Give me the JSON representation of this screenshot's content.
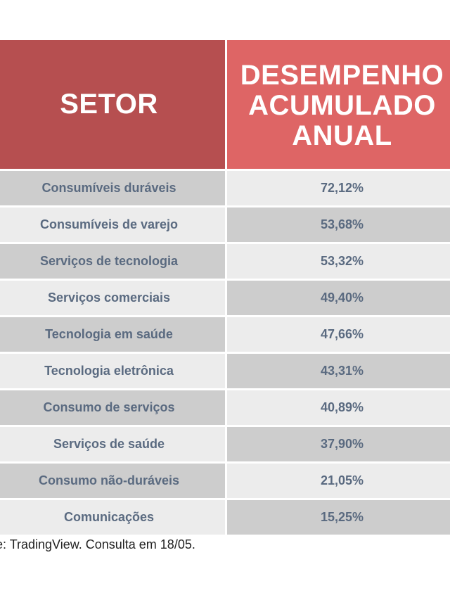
{
  "chart_data": {
    "type": "table",
    "columns": [
      "SETOR",
      "DESEMPENHO\nACUMULADO\nANUAL"
    ],
    "rows": [
      {
        "sector": "Consumíveis duráveis",
        "value": "72,12%"
      },
      {
        "sector": "Consumíveis de varejo",
        "value": "53,68%"
      },
      {
        "sector": "Serviços de tecnologia",
        "value": "53,32%"
      },
      {
        "sector": "Serviços comerciais",
        "value": "49,40%"
      },
      {
        "sector": "Tecnologia em saúde",
        "value": "47,66%"
      },
      {
        "sector": "Tecnologia eletrônica",
        "value": "43,31%"
      },
      {
        "sector": "Consumo de serviços",
        "value": "40,89%"
      },
      {
        "sector": "Serviços de saúde",
        "value": "37,90%"
      },
      {
        "sector": "Consumo não-duráveis",
        "value": "21,05%"
      },
      {
        "sector": "Comunicações",
        "value": "15,25%"
      }
    ],
    "footnote": "e: TradingView. Consulta em 18/05."
  },
  "colors": {
    "header_sector": "#b64f50",
    "header_performance": "#de6565",
    "row_dark": "#cdcdcd",
    "row_light": "#ececec",
    "text": "#5a6a80"
  }
}
